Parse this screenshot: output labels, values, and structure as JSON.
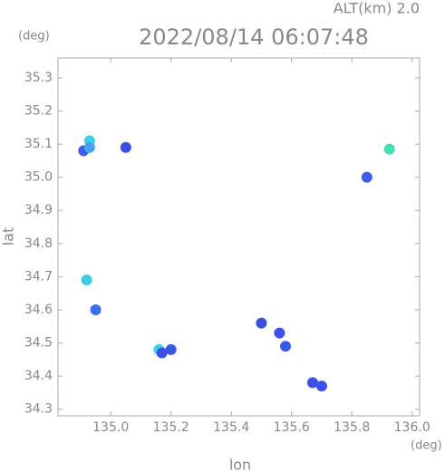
{
  "chart_data": {
    "type": "scatter",
    "title": "2022/08/14 06:07:48",
    "subtitle": "ALT(km) 2.0",
    "y_unit": "(deg)",
    "x_unit": "(deg)",
    "xlabel": "lon",
    "ylabel": "lat",
    "x": [
      134.93,
      134.91,
      134.93,
      135.05,
      135.925,
      135.85,
      134.92,
      134.95,
      135.16,
      135.17,
      135.2,
      135.5,
      135.56,
      135.58,
      135.67,
      135.7
    ],
    "y": [
      35.11,
      35.08,
      35.09,
      35.09,
      35.085,
      35.0,
      34.69,
      34.6,
      34.48,
      34.47,
      34.48,
      34.56,
      34.53,
      34.49,
      34.38,
      34.37
    ],
    "colors": [
      "#3fd0e8",
      "#3a5ee8",
      "#4aa0f0",
      "#3a4ee0",
      "#40e0b0",
      "#3a5ee8",
      "#40c8e8",
      "#3a6ee8",
      "#40d0e8",
      "#3a50e8",
      "#3a58e8",
      "#3a50e0",
      "#3a50e8",
      "#3a58e8",
      "#3a50e8",
      "#3a50e8"
    ],
    "xlim": [
      134.825,
      136.025
    ],
    "ylim": [
      34.28,
      35.36
    ],
    "xticks": [
      {
        "value": 135,
        "label": "135.0"
      },
      135.2,
      135.4,
      135.6,
      135.8,
      {
        "value": 136,
        "label": "136.0"
      }
    ],
    "yticks": [
      35.3,
      35.2,
      35.1,
      {
        "value": 35,
        "label": "35.0"
      },
      34.9,
      34.8,
      34.7,
      34.6,
      34.5,
      34.4,
      34.3
    ]
  }
}
